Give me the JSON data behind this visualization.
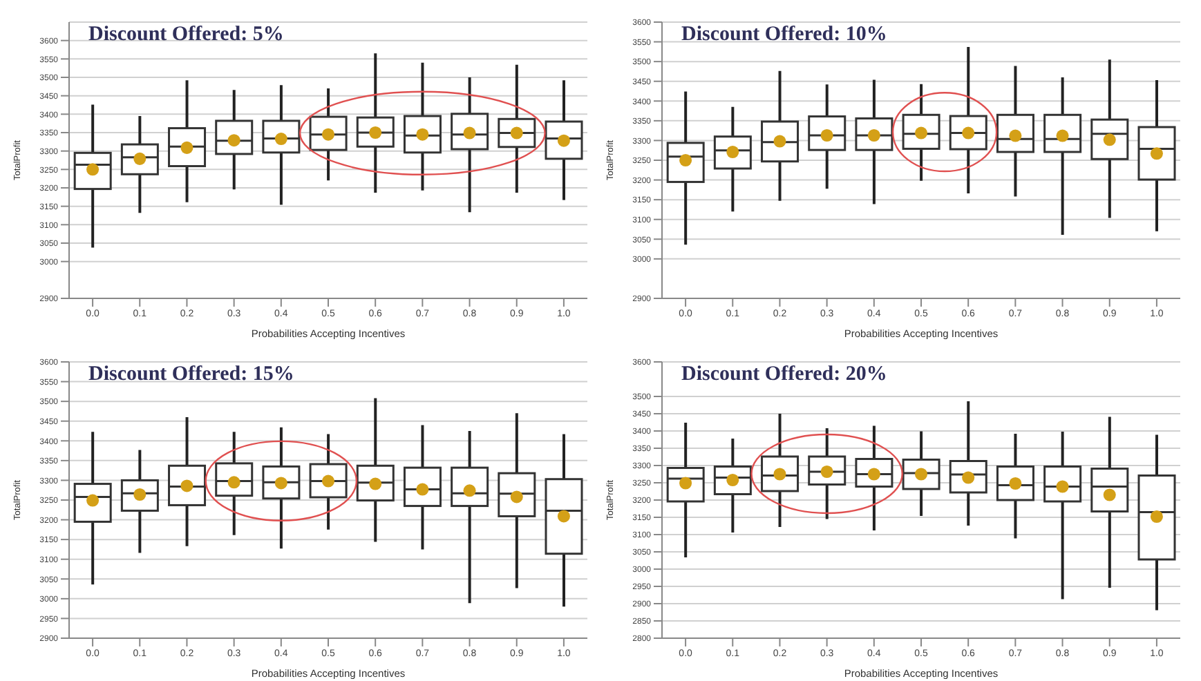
{
  "chart_data": [
    {
      "type": "box",
      "title": "Discount Offered: 5%",
      "xlabel": "Probabilities Accepting Incentives",
      "ylabel": "TotalProfit",
      "categories": [
        "0.0",
        "0.1",
        "0.2",
        "0.3",
        "0.4",
        "0.5",
        "0.6",
        "0.7",
        "0.8",
        "0.9",
        "1.0"
      ],
      "ylim": [
        2900,
        3650
      ],
      "yticks": [
        2900,
        3000,
        3050,
        3100,
        3150,
        3200,
        3250,
        3300,
        3350,
        3400,
        3450,
        3500,
        3550,
        3600
      ],
      "grid": "y",
      "marker": "circle",
      "boxes": [
        {
          "low": 3038,
          "q1": 3197,
          "median": 3263,
          "q3": 3295,
          "high": 3426,
          "mean": 3250
        },
        {
          "low": 3132,
          "q1": 3237,
          "median": 3283,
          "q3": 3318,
          "high": 3395,
          "mean": 3279
        },
        {
          "low": 3161,
          "q1": 3259,
          "median": 3312,
          "q3": 3362,
          "high": 3492,
          "mean": 3309
        },
        {
          "low": 3196,
          "q1": 3292,
          "median": 3328,
          "q3": 3382,
          "high": 3466,
          "mean": 3329
        },
        {
          "low": 3154,
          "q1": 3296,
          "median": 3334,
          "q3": 3382,
          "high": 3479,
          "mean": 3333
        },
        {
          "low": 3220,
          "q1": 3303,
          "median": 3345,
          "q3": 3393,
          "high": 3470,
          "mean": 3345
        },
        {
          "low": 3187,
          "q1": 3312,
          "median": 3350,
          "q3": 3391,
          "high": 3565,
          "mean": 3350
        },
        {
          "low": 3193,
          "q1": 3296,
          "median": 3342,
          "q3": 3395,
          "high": 3540,
          "mean": 3345
        },
        {
          "low": 3134,
          "q1": 3305,
          "median": 3345,
          "q3": 3401,
          "high": 3500,
          "mean": 3349
        },
        {
          "low": 3187,
          "q1": 3311,
          "median": 3349,
          "q3": 3387,
          "high": 3534,
          "mean": 3349
        },
        {
          "low": 3167,
          "q1": 3279,
          "median": 3334,
          "q3": 3380,
          "high": 3492,
          "mean": 3328
        }
      ]
    },
    {
      "type": "box",
      "title": "Discount Offered: 10%",
      "xlabel": "Probabilities Accepting Incentives",
      "ylabel": "TotalProfit",
      "categories": [
        "0.0",
        "0.1",
        "0.2",
        "0.3",
        "0.4",
        "0.5",
        "0.6",
        "0.7",
        "0.8",
        "0.9",
        "1.0"
      ],
      "ylim": [
        2900,
        3600
      ],
      "yticks": [
        2900,
        3000,
        3050,
        3100,
        3150,
        3200,
        3250,
        3300,
        3350,
        3400,
        3450,
        3500,
        3550,
        3600
      ],
      "grid": "y",
      "marker": "circle",
      "boxes": [
        {
          "low": 3036,
          "q1": 3195,
          "median": 3259,
          "q3": 3294,
          "high": 3424,
          "mean": 3250
        },
        {
          "low": 3120,
          "q1": 3229,
          "median": 3275,
          "q3": 3310,
          "high": 3385,
          "mean": 3271
        },
        {
          "low": 3147,
          "q1": 3247,
          "median": 3296,
          "q3": 3348,
          "high": 3476,
          "mean": 3298
        },
        {
          "low": 3178,
          "q1": 3276,
          "median": 3313,
          "q3": 3361,
          "high": 3442,
          "mean": 3313
        },
        {
          "low": 3139,
          "q1": 3276,
          "median": 3313,
          "q3": 3356,
          "high": 3454,
          "mean": 3313
        },
        {
          "low": 3198,
          "q1": 3279,
          "median": 3317,
          "q3": 3365,
          "high": 3443,
          "mean": 3319
        },
        {
          "low": 3166,
          "q1": 3278,
          "median": 3319,
          "q3": 3362,
          "high": 3537,
          "mean": 3319
        },
        {
          "low": 3158,
          "q1": 3271,
          "median": 3304,
          "q3": 3365,
          "high": 3489,
          "mean": 3312
        },
        {
          "low": 3061,
          "q1": 3271,
          "median": 3304,
          "q3": 3365,
          "high": 3460,
          "mean": 3312
        },
        {
          "low": 3104,
          "q1": 3253,
          "median": 3317,
          "q3": 3353,
          "high": 3505,
          "mean": 3302
        },
        {
          "low": 3070,
          "q1": 3201,
          "median": 3279,
          "q3": 3334,
          "high": 3453,
          "mean": 3267
        }
      ]
    },
    {
      "type": "box",
      "title": "Discount Offered: 15%",
      "xlabel": "Probabilities Accepting Incentives",
      "ylabel": "TotalProfit",
      "categories": [
        "0.0",
        "0.1",
        "0.2",
        "0.3",
        "0.4",
        "0.5",
        "0.6",
        "0.7",
        "0.8",
        "0.9",
        "1.0"
      ],
      "ylim": [
        2900,
        3600
      ],
      "yticks": [
        2900,
        2950,
        3000,
        3050,
        3100,
        3150,
        3200,
        3250,
        3300,
        3350,
        3400,
        3450,
        3500,
        3550,
        3600
      ],
      "grid": "y",
      "marker": "circle",
      "boxes": [
        {
          "low": 3036,
          "q1": 3195,
          "median": 3258,
          "q3": 3291,
          "high": 3423,
          "mean": 3249
        },
        {
          "low": 3116,
          "q1": 3223,
          "median": 3267,
          "q3": 3300,
          "high": 3377,
          "mean": 3264
        },
        {
          "low": 3133,
          "q1": 3237,
          "median": 3284,
          "q3": 3337,
          "high": 3460,
          "mean": 3286
        },
        {
          "low": 3161,
          "q1": 3261,
          "median": 3298,
          "q3": 3343,
          "high": 3423,
          "mean": 3295
        },
        {
          "low": 3127,
          "q1": 3254,
          "median": 3295,
          "q3": 3335,
          "high": 3434,
          "mean": 3293
        },
        {
          "low": 3175,
          "q1": 3257,
          "median": 3298,
          "q3": 3341,
          "high": 3417,
          "mean": 3298
        },
        {
          "low": 3144,
          "q1": 3249,
          "median": 3294,
          "q3": 3337,
          "high": 3508,
          "mean": 3291
        },
        {
          "low": 3125,
          "q1": 3235,
          "median": 3277,
          "q3": 3332,
          "high": 3440,
          "mean": 3277
        },
        {
          "low": 2989,
          "q1": 3235,
          "median": 3267,
          "q3": 3332,
          "high": 3425,
          "mean": 3274
        },
        {
          "low": 3027,
          "q1": 3209,
          "median": 3266,
          "q3": 3318,
          "high": 3470,
          "mean": 3258
        },
        {
          "low": 2980,
          "q1": 3114,
          "median": 3223,
          "q3": 3303,
          "high": 3417,
          "mean": 3209
        }
      ]
    },
    {
      "type": "box",
      "title": "Discount Offered: 20%",
      "xlabel": "Probabilities Accepting Incentives",
      "ylabel": "TotalProfit",
      "categories": [
        "0.0",
        "0.1",
        "0.2",
        "0.3",
        "0.4",
        "0.5",
        "0.6",
        "0.7",
        "0.8",
        "0.9",
        "1.0"
      ],
      "ylim": [
        2800,
        3600
      ],
      "yticks": [
        2800,
        2850,
        2900,
        2950,
        3000,
        3050,
        3100,
        3150,
        3200,
        3250,
        3300,
        3350,
        3400,
        3450,
        3500,
        3600
      ],
      "grid": "y",
      "marker": "circle",
      "boxes": [
        {
          "low": 3034,
          "q1": 3196,
          "median": 3262,
          "q3": 3293,
          "high": 3424,
          "mean": 3249
        },
        {
          "low": 3106,
          "q1": 3217,
          "median": 3265,
          "q3": 3297,
          "high": 3378,
          "mean": 3258
        },
        {
          "low": 3122,
          "q1": 3226,
          "median": 3271,
          "q3": 3326,
          "high": 3450,
          "mean": 3275
        },
        {
          "low": 3145,
          "q1": 3245,
          "median": 3282,
          "q3": 3326,
          "high": 3408,
          "mean": 3282
        },
        {
          "low": 3112,
          "q1": 3239,
          "median": 3275,
          "q3": 3319,
          "high": 3415,
          "mean": 3275
        },
        {
          "low": 3154,
          "q1": 3232,
          "median": 3278,
          "q3": 3317,
          "high": 3399,
          "mean": 3275
        },
        {
          "low": 3126,
          "q1": 3222,
          "median": 3274,
          "q3": 3313,
          "high": 3486,
          "mean": 3265
        },
        {
          "low": 3089,
          "q1": 3200,
          "median": 3243,
          "q3": 3297,
          "high": 3392,
          "mean": 3248
        },
        {
          "low": 2913,
          "q1": 3196,
          "median": 3239,
          "q3": 3297,
          "high": 3398,
          "mean": 3239
        },
        {
          "low": 2946,
          "q1": 3167,
          "median": 3239,
          "q3": 3291,
          "high": 3441,
          "mean": 3215
        },
        {
          "low": 2881,
          "q1": 3028,
          "median": 3165,
          "q3": 3271,
          "high": 3389,
          "mean": 3152
        }
      ]
    }
  ]
}
